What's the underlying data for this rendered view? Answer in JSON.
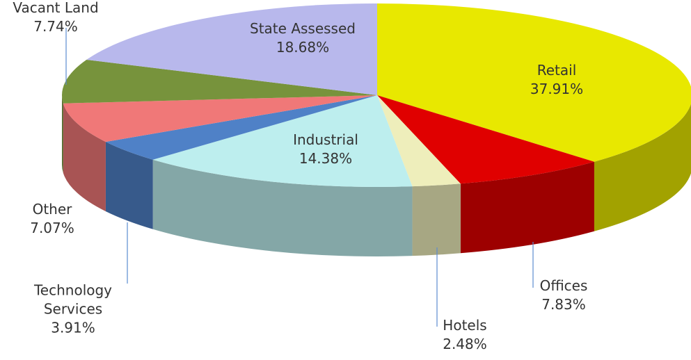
{
  "chart_data": {
    "type": "pie",
    "categories": [
      "Retail",
      "Offices",
      "Hotels",
      "Industrial",
      "Technology Services",
      "Other",
      "Vacant Land",
      "State Assessed"
    ],
    "values": [
      37.91,
      7.83,
      2.48,
      14.38,
      3.91,
      7.07,
      7.74,
      18.68
    ],
    "value_labels": [
      "37.91%",
      "7.83%",
      "2.48%",
      "14.38%",
      "3.91%",
      "7.07%",
      "7.74%",
      "18.68%"
    ],
    "colors": [
      "#e8e800",
      "#e00000",
      "#eeeebb",
      "#bdeeee",
      "#4f81c7",
      "#f07878",
      "#77933c",
      "#b8b8ec"
    ]
  }
}
